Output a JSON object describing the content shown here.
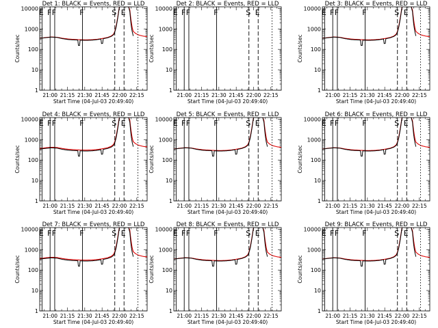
{
  "chart_data": {
    "type": "line",
    "layout": "3x3 grid",
    "xlabel": "Start Time (04-Jul-03 20:49:40)",
    "ylabel": "Counts/sec",
    "y_scale": "log",
    "ylim": [
      1,
      12000
    ],
    "y_ticks": [
      1,
      10,
      100,
      1000,
      10000
    ],
    "y_tick_labels": [
      "1",
      "10",
      "100",
      "1000",
      "10000"
    ],
    "xlim_minutes": [
      1251,
      1344
    ],
    "x_ticks_minutes": [
      1260,
      1275,
      1290,
      1305,
      1320,
      1335
    ],
    "x_tick_labels": [
      "21:00",
      "21:15",
      "21:30",
      "21:45",
      "22:00",
      "22:15"
    ],
    "series_legend": [
      "Events (black)",
      "LLD (red)"
    ],
    "colors": {
      "events": "#000000",
      "lld": "#e00000"
    },
    "panels": [
      {
        "title": "Det 1:  BLACK = Events, RED = LLD",
        "has_data": true,
        "lld_offset": 1.0,
        "markers": [
          {
            "label": "E",
            "t": 1253,
            "style": "solid"
          },
          {
            "label": "F",
            "t": 1260,
            "style": "solid"
          },
          {
            "label": "F",
            "t": 1264,
            "style": "solid"
          },
          {
            "label": "F",
            "t": 1288,
            "style": "solid"
          },
          {
            "label": "S",
            "t": 1316,
            "style": "dashed"
          },
          {
            "label": "E",
            "t": 1324,
            "style": "dashed"
          },
          {
            "label": "",
            "t": 1336,
            "style": "dotted"
          }
        ]
      },
      {
        "title": "Det 2:  BLACK = Events, RED = LLD",
        "has_data": false,
        "lld_offset": 1.0,
        "markers": [
          {
            "label": "E",
            "t": 1253,
            "style": "solid"
          },
          {
            "label": "F",
            "t": 1260,
            "style": "solid"
          },
          {
            "label": "F",
            "t": 1264,
            "style": "solid"
          },
          {
            "label": "F",
            "t": 1288,
            "style": "solid"
          },
          {
            "label": "S",
            "t": 1316,
            "style": "dashed"
          },
          {
            "label": "E",
            "t": 1324,
            "style": "dashed"
          },
          {
            "label": "",
            "t": 1336,
            "style": "dotted"
          }
        ]
      },
      {
        "title": "Det 3:  BLACK = Events, RED = LLD",
        "has_data": true,
        "lld_offset": 1.0,
        "markers": [
          {
            "label": "E",
            "t": 1253,
            "style": "solid"
          },
          {
            "label": "F",
            "t": 1260,
            "style": "solid"
          },
          {
            "label": "F",
            "t": 1264,
            "style": "solid"
          },
          {
            "label": "F",
            "t": 1288,
            "style": "solid"
          },
          {
            "label": "S",
            "t": 1316,
            "style": "dashed"
          },
          {
            "label": "E",
            "t": 1324,
            "style": "dashed"
          },
          {
            "label": "",
            "t": 1336,
            "style": "dotted"
          }
        ]
      },
      {
        "title": "Det 4:  BLACK = Events, RED = LLD",
        "has_data": true,
        "lld_offset": 1.05,
        "markers": [
          {
            "label": "E",
            "t": 1253,
            "style": "solid"
          },
          {
            "label": "F",
            "t": 1260,
            "style": "solid"
          },
          {
            "label": "F",
            "t": 1264,
            "style": "solid"
          },
          {
            "label": "F",
            "t": 1288,
            "style": "solid"
          },
          {
            "label": "S",
            "t": 1316,
            "style": "dashed"
          },
          {
            "label": "E",
            "t": 1324,
            "style": "dashed"
          },
          {
            "label": "",
            "t": 1336,
            "style": "dotted"
          }
        ]
      },
      {
        "title": "Det 5:  BLACK = Events, RED = LLD",
        "has_data": true,
        "lld_offset": 1.0,
        "markers": [
          {
            "label": "E",
            "t": 1253,
            "style": "solid"
          },
          {
            "label": "F",
            "t": 1260,
            "style": "solid"
          },
          {
            "label": "F",
            "t": 1264,
            "style": "solid"
          },
          {
            "label": "F",
            "t": 1288,
            "style": "solid"
          },
          {
            "label": "S",
            "t": 1316,
            "style": "dashed"
          },
          {
            "label": "E",
            "t": 1324,
            "style": "dashed"
          },
          {
            "label": "",
            "t": 1336,
            "style": "dotted"
          }
        ]
      },
      {
        "title": "Det 6:  BLACK = Events, RED = LLD",
        "has_data": true,
        "lld_offset": 1.0,
        "markers": [
          {
            "label": "E",
            "t": 1253,
            "style": "solid"
          },
          {
            "label": "F",
            "t": 1260,
            "style": "solid"
          },
          {
            "label": "F",
            "t": 1264,
            "style": "solid"
          },
          {
            "label": "F",
            "t": 1288,
            "style": "solid"
          },
          {
            "label": "S",
            "t": 1316,
            "style": "dashed"
          },
          {
            "label": "E",
            "t": 1324,
            "style": "dashed"
          },
          {
            "label": "",
            "t": 1336,
            "style": "dotted"
          }
        ]
      },
      {
        "title": "Det 7:  BLACK = Events, RED = LLD",
        "has_data": true,
        "lld_offset": 1.05,
        "markers": [
          {
            "label": "E",
            "t": 1253,
            "style": "solid"
          },
          {
            "label": "F",
            "t": 1260,
            "style": "solid"
          },
          {
            "label": "F",
            "t": 1264,
            "style": "solid"
          },
          {
            "label": "F",
            "t": 1288,
            "style": "solid"
          },
          {
            "label": "S",
            "t": 1316,
            "style": "dashed"
          },
          {
            "label": "E",
            "t": 1324,
            "style": "dashed"
          },
          {
            "label": "",
            "t": 1336,
            "style": "dotted"
          }
        ]
      },
      {
        "title": "Det 8:  BLACK = Events, RED = LLD",
        "has_data": true,
        "lld_offset": 1.0,
        "markers": [
          {
            "label": "E",
            "t": 1253,
            "style": "solid"
          },
          {
            "label": "F",
            "t": 1260,
            "style": "solid"
          },
          {
            "label": "F",
            "t": 1264,
            "style": "solid"
          },
          {
            "label": "F",
            "t": 1288,
            "style": "solid"
          },
          {
            "label": "S",
            "t": 1316,
            "style": "dashed"
          },
          {
            "label": "E",
            "t": 1324,
            "style": "dashed"
          },
          {
            "label": "",
            "t": 1336,
            "style": "dotted"
          }
        ]
      },
      {
        "title": "Det 9:  BLACK = Events, RED = LLD",
        "has_data": true,
        "lld_offset": 1.0,
        "markers": [
          {
            "label": "E",
            "t": 1253,
            "style": "solid"
          },
          {
            "label": "F",
            "t": 1260,
            "style": "solid"
          },
          {
            "label": "F",
            "t": 1264,
            "style": "solid"
          },
          {
            "label": "F",
            "t": 1288,
            "style": "solid"
          },
          {
            "label": "S",
            "t": 1316,
            "style": "dashed"
          },
          {
            "label": "E",
            "t": 1324,
            "style": "dashed"
          },
          {
            "label": "",
            "t": 1336,
            "style": "dotted"
          }
        ]
      }
    ],
    "events_curve": {
      "t": [
        1251,
        1256,
        1261,
        1266,
        1271,
        1276,
        1281,
        1286,
        1291,
        1296,
        1301,
        1306,
        1310,
        1313,
        1315,
        1316,
        1317,
        1318,
        1319,
        1320,
        1321,
        1322,
        1323,
        1324,
        1325,
        1326,
        1327,
        1328,
        1329,
        1330,
        1331,
        1332
      ],
      "v": [
        340,
        370,
        395,
        380,
        330,
        300,
        290,
        280,
        275,
        280,
        300,
        330,
        370,
        430,
        520,
        700,
        1100,
        2200,
        5000,
        12000,
        12000,
        12000,
        12000,
        12000,
        12000,
        12000,
        12000,
        12000,
        7000,
        1800,
        750,
        450
      ]
    },
    "lld_curve": {
      "t": [
        1251,
        1256,
        1261,
        1266,
        1271,
        1276,
        1281,
        1286,
        1291,
        1296,
        1301,
        1306,
        1310,
        1313,
        1315,
        1316,
        1317,
        1318,
        1319,
        1320,
        1321,
        1322,
        1323,
        1324,
        1325,
        1326,
        1327,
        1328,
        1329,
        1330,
        1331,
        1332,
        1334,
        1336,
        1338,
        1340,
        1342,
        1344
      ],
      "v": [
        345,
        378,
        402,
        390,
        345,
        318,
        305,
        295,
        290,
        295,
        312,
        345,
        385,
        450,
        560,
        760,
        1250,
        2500,
        5500,
        12000,
        12000,
        12000,
        12000,
        12000,
        12000,
        12000,
        12000,
        12000,
        8500,
        2800,
        1200,
        750,
        600,
        520,
        480,
        450,
        430,
        420
      ]
    },
    "dips": [
      {
        "t": 1285,
        "factor": 0.55
      },
      {
        "t": 1305,
        "factor": 0.6
      }
    ]
  }
}
